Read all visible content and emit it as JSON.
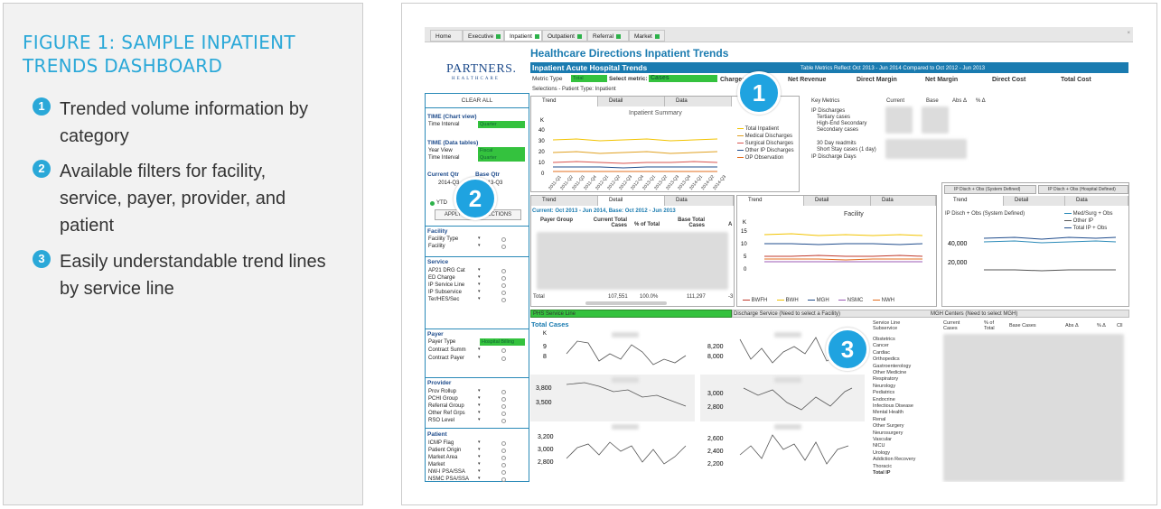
{
  "figure": {
    "title": "FIGURE 1: SAMPLE INPATIENT TRENDS DASHBOARD",
    "features": [
      {
        "num": "1",
        "text": "Trended volume information by category"
      },
      {
        "num": "2",
        "text": "Available filters for facility, service, payer, provider, and patient"
      },
      {
        "num": "3",
        "text": "Easily understandable trend lines by service line"
      }
    ]
  },
  "colors": {
    "accent": "#2aa8d8",
    "brand_green": "#34c23e",
    "header_blue": "#1a7bb0",
    "badge": "#1fa3e0"
  },
  "tabs": [
    "Home",
    "Executive",
    "Inpatient",
    "Outpatient",
    "Referral",
    "Market"
  ],
  "dashboard": {
    "title": "Healthcare Directions Inpatient Trends",
    "logo_main": "PARTNERS.",
    "logo_sub": "HEALTHCARE",
    "bar_title": "Inpatient Acute Hospital Trends",
    "bar_note": "Table Metrics Reflect Oct 2013 - Jun 2014  Compared to  Oct 2012 - Jun 2013",
    "metric_type_label": "Metric Type",
    "metric_type_value": "Total",
    "select_metric_label": "Select metric:",
    "metric_columns": [
      "Cases",
      "Charges",
      "Net Revenue",
      "Direct Margin",
      "Net Margin",
      "Direct Cost",
      "Total Cost"
    ],
    "selections": "Selections - Patient Type: Inpatient"
  },
  "sidebar": {
    "clear_all": "CLEAR ALL",
    "time_chart": "TIME (Chart view)",
    "time_interval": "Time Interval",
    "quarter": "Quarter",
    "time_data": "TIME (Data tables)",
    "year_view": "Year View",
    "fiscal": "Fiscal",
    "current_qtr": "Current Qtr",
    "base_qtr": "Base Qtr",
    "current_val": "2014-Q3",
    "base_val": "2013-Q3",
    "ytd": "YTD",
    "apply": "APPLY TIME SELECTIONS",
    "facility": "Facility",
    "facility_rows": [
      "Facility Type",
      "Facility"
    ],
    "service": "Service",
    "service_rows": [
      "AP21 DRG Cat",
      "ED Charge",
      "IP Service Line",
      "IP Subservice",
      "Ter/HES/Sec"
    ],
    "payer": "Payer",
    "payer_rows": [
      "Payer Type",
      "Contract Summ",
      "Contract Payer"
    ],
    "payer_value": "Hospital Billing",
    "provider": "Provider",
    "provider_rows": [
      "Prov Rollup",
      "PCHI Group",
      "Referral Group",
      "Other Ref Grps",
      "RSO Level"
    ],
    "patient": "Patient",
    "patient_rows": [
      "ICMP Flag",
      "Patient Origin",
      "Market Area",
      "Market",
      "NW-I PSA/SSA",
      "NSMC PSA/SSA"
    ]
  },
  "panel_tabs": [
    "Trend",
    "Detail",
    "Data"
  ],
  "summary_chart": {
    "title": "Inpatient Summary",
    "y_unit": "K",
    "y_ticks": [
      "40",
      "30",
      "20",
      "10",
      "0"
    ],
    "x_ticks": [
      "2011-Q1",
      "2011-Q2",
      "2011-Q3",
      "2011-Q4",
      "2012-Q1",
      "2012-Q2",
      "2012-Q3",
      "2012-Q4",
      "2013-Q1",
      "2013-Q2",
      "2013-Q3",
      "2013-Q4",
      "2014-Q1",
      "2014-Q2",
      "2014-Q3"
    ],
    "legend": [
      "Total Inpatient",
      "Medical Discharges",
      "Surgical Discharges",
      "Other IP Discharges",
      "OP Observation"
    ],
    "colors": [
      "#f2c300",
      "#e0a020",
      "#d9534f",
      "#1f4c8c",
      "#e36c1c"
    ]
  },
  "key_metrics": {
    "headers": [
      "Key Metrics",
      "Current",
      "Base",
      "Abs Δ",
      "% Δ"
    ],
    "rows": [
      "IP Discharges",
      "Tertiary cases",
      "High-End Secondary",
      "Secondary cases",
      "30 Day readmits",
      "Short Stay cases (1 day)",
      "IP Discharge Days"
    ]
  },
  "detail_table": {
    "header": "Current: Oct 2013 - Jun 2014,  Base: Oct 2012 - Jun 2013",
    "columns": [
      "Payer Group",
      "Current Total Cases",
      "% of Total",
      "Base Total Cases",
      "A"
    ],
    "total_label": "Total",
    "total_current": "107,551",
    "total_pct": "100.0%",
    "total_base": "111,297",
    "total_last": "-3"
  },
  "facility_chart": {
    "title": "Facility",
    "y_unit": "K",
    "y_ticks": [
      "15",
      "10",
      "5",
      "0"
    ],
    "legend": [
      "BWFH",
      "BWH",
      "MGH",
      "NSMC",
      "NWH"
    ],
    "colors": [
      "#c0392b",
      "#f2c300",
      "#1f4c8c",
      "#9b59b6",
      "#e36c1c"
    ]
  },
  "ip_disch_chart": {
    "tab_system": "IP Disch + Obs (System Defined)",
    "tab_hospital": "IP Disch + Obs (Hospital Defined)",
    "title": "IP Disch + Obs (System Defined)",
    "y_ticks": [
      "40,000",
      "20,000"
    ],
    "legend": [
      "Med/Surg + Obs",
      "Other IP",
      "Total IP + Obs"
    ],
    "colors": [
      "#2a8ab8",
      "#555555",
      "#1f4c8c"
    ]
  },
  "service_bar": {
    "phs": "PHS Service Line",
    "discharge": "Discharge Service (Need to select a Facility)",
    "mgh": "MGH Centers (Need to select MGH)"
  },
  "total_cases": {
    "title": "Total Cases",
    "y_unit": "K",
    "mini_a_ticks": [
      "9",
      "8"
    ],
    "mini_b_ticks": [
      "8,200",
      "8,000"
    ],
    "mini_c_ticks": [
      "3,800",
      "3,500"
    ],
    "mini_d_ticks": [
      "3,000",
      "2,800"
    ],
    "mini_e_ticks": [
      "3,200",
      "3,000",
      "2,800"
    ],
    "mini_f_ticks": [
      "2,600",
      "2,400",
      "2,200"
    ]
  },
  "service_table": {
    "headers": [
      "Service Line Subservice",
      "Current Cases",
      "% of Total",
      "Base Cases",
      "Abs Δ",
      "% Δ",
      "Cll"
    ],
    "rows": [
      "Obstetrics",
      "Cancer",
      "Cardiac",
      "Orthopedics",
      "Gastroenterology",
      "Other Medicine",
      "Respiratory",
      "Neurology",
      "Pediatrics",
      "Endocrine",
      "Infectious Disease",
      "Mental Health",
      "Renal",
      "Other Surgery",
      "Neurosurgery",
      "Vascular",
      "NICU",
      "Urology",
      "Addiction Recovery",
      "Thoracic",
      "Total IP"
    ]
  }
}
